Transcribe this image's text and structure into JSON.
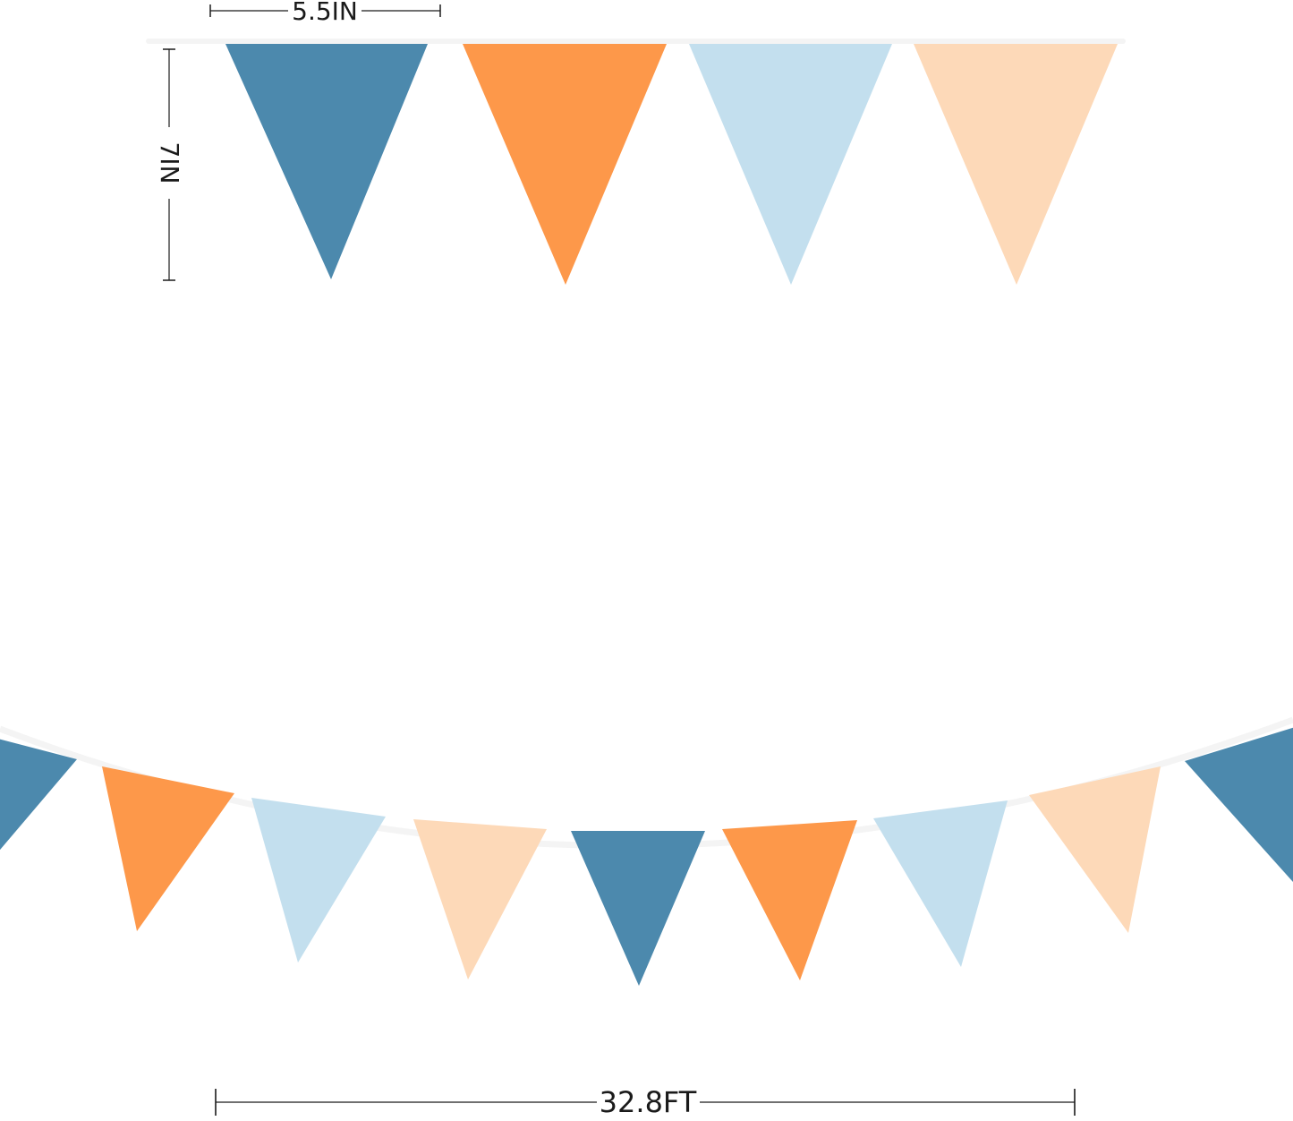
{
  "image": {
    "subject": "fabric pennant bunting banner with dimension markers",
    "background_color": "#ffffff",
    "string_color": "#f4f4f4"
  },
  "palette": {
    "steel_blue": "#4c89ad",
    "orange": "#fd984a",
    "light_blue": "#c3dfee",
    "peach": "#fdd9b8"
  },
  "dimensions": {
    "flag_width_label": "5.5IN",
    "flag_height_label": "7IN",
    "total_length_label": "32.8FT"
  },
  "top_row": {
    "flag_colors": [
      "steel_blue",
      "orange",
      "light_blue",
      "peach"
    ]
  },
  "bottom_row": {
    "flag_colors": [
      "steel_blue",
      "orange",
      "light_blue",
      "peach",
      "steel_blue",
      "orange",
      "light_blue",
      "peach",
      "steel_blue"
    ]
  }
}
